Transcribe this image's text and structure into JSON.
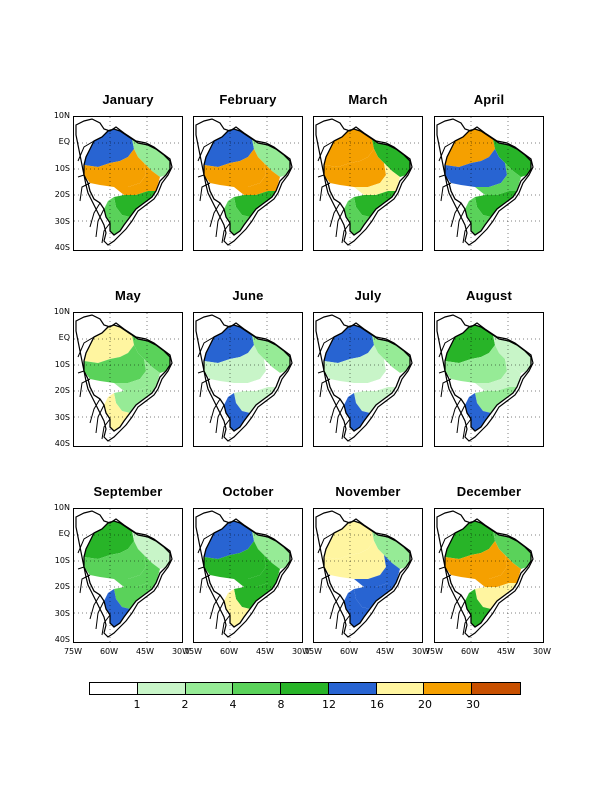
{
  "months": [
    "January",
    "February",
    "March",
    "April",
    "May",
    "June",
    "July",
    "August",
    "September",
    "October",
    "November",
    "December"
  ],
  "latitude_ticks": [
    "10N",
    "EQ",
    "10S",
    "20S",
    "30S",
    "40S"
  ],
  "longitude_ticks": [
    "75W",
    "60W",
    "45W",
    "30W"
  ],
  "legend": {
    "ticks": [
      "1",
      "2",
      "4",
      "8",
      "12",
      "16",
      "20",
      "30"
    ],
    "colors": [
      "#ffffff",
      "#c8f5c8",
      "#96eb96",
      "#5ad25a",
      "#28b428",
      "#2864d2",
      "#fff5a0",
      "#f5a000",
      "#c85000"
    ]
  },
  "monthly_levels": [
    {
      "month": "January",
      "north": 5,
      "central": 7,
      "southeast": 4,
      "south": 3,
      "northeast": 2,
      "interior": 7
    },
    {
      "month": "February",
      "north": 5,
      "central": 7,
      "southeast": 4,
      "south": 3,
      "northeast": 2,
      "interior": 7
    },
    {
      "month": "March",
      "north": 7,
      "central": 7,
      "southeast": 4,
      "south": 3,
      "northeast": 4,
      "interior": 6
    },
    {
      "month": "April",
      "north": 7,
      "central": 5,
      "southeast": 4,
      "south": 3,
      "northeast": 4,
      "interior": 3
    },
    {
      "month": "May",
      "north": 6,
      "central": 3,
      "southeast": 2,
      "south": 6,
      "northeast": 3,
      "interior": 2
    },
    {
      "month": "June",
      "north": 5,
      "central": 1,
      "southeast": 1,
      "south": 5,
      "northeast": 2,
      "interior": 0
    },
    {
      "month": "July",
      "north": 5,
      "central": 1,
      "southeast": 1,
      "south": 5,
      "northeast": 2,
      "interior": 0
    },
    {
      "month": "August",
      "north": 4,
      "central": 2,
      "southeast": 2,
      "south": 5,
      "northeast": 1,
      "interior": 1
    },
    {
      "month": "September",
      "north": 4,
      "central": 3,
      "southeast": 3,
      "south": 5,
      "northeast": 1,
      "interior": 3
    },
    {
      "month": "October",
      "north": 5,
      "central": 4,
      "southeast": 4,
      "south": 6,
      "northeast": 2,
      "interior": 4
    },
    {
      "month": "November",
      "north": 6,
      "central": 6,
      "southeast": 5,
      "south": 5,
      "northeast": 2,
      "interior": 5
    },
    {
      "month": "December",
      "north": 4,
      "central": 7,
      "southeast": 6,
      "south": 4,
      "northeast": 3,
      "interior": 7
    }
  ]
}
